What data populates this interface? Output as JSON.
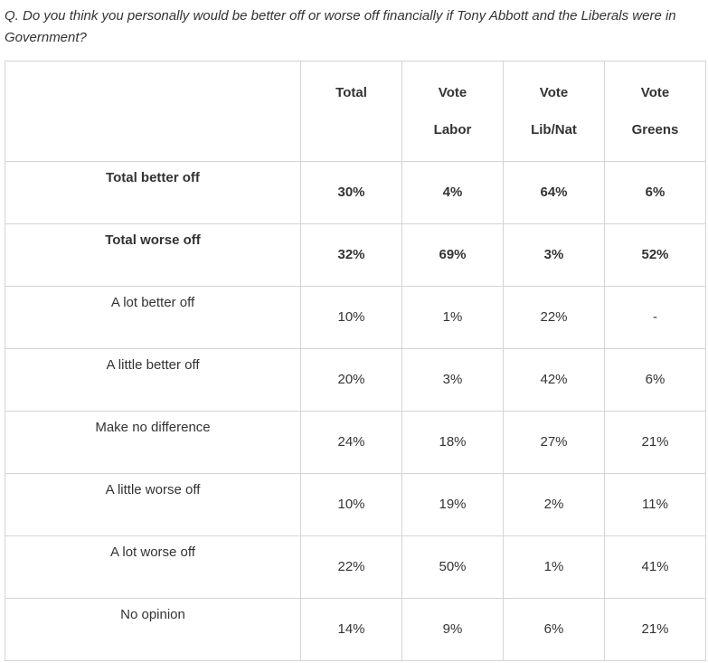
{
  "question": "Q. Do you think you personally would be better off or worse off financially if Tony Abbott and the Liberals were in Government?",
  "columns": [
    {
      "line1": "Total",
      "line2": ""
    },
    {
      "line1": "Vote",
      "line2": "Labor"
    },
    {
      "line1": "Vote",
      "line2": "Lib/Nat"
    },
    {
      "line1": "Vote",
      "line2": "Greens"
    }
  ],
  "rows": [
    {
      "label": "Total better off",
      "bold": true,
      "values": [
        "30%",
        "4%",
        "64%",
        "6%"
      ]
    },
    {
      "label": "Total worse off",
      "bold": true,
      "values": [
        "32%",
        "69%",
        "3%",
        "52%"
      ]
    },
    {
      "label": "A lot better off",
      "bold": false,
      "values": [
        "10%",
        "1%",
        "22%",
        "-"
      ]
    },
    {
      "label": "A little better off",
      "bold": false,
      "values": [
        "20%",
        "3%",
        "42%",
        "6%"
      ]
    },
    {
      "label": "Make no difference",
      "bold": false,
      "values": [
        "24%",
        "18%",
        "27%",
        "21%"
      ]
    },
    {
      "label": "A little worse off",
      "bold": false,
      "values": [
        "10%",
        "19%",
        "2%",
        "11%"
      ]
    },
    {
      "label": "A lot worse off",
      "bold": false,
      "values": [
        "22%",
        "50%",
        "1%",
        "41%"
      ]
    },
    {
      "label": "No opinion",
      "bold": false,
      "values": [
        "14%",
        "9%",
        "6%",
        "21%"
      ]
    }
  ]
}
